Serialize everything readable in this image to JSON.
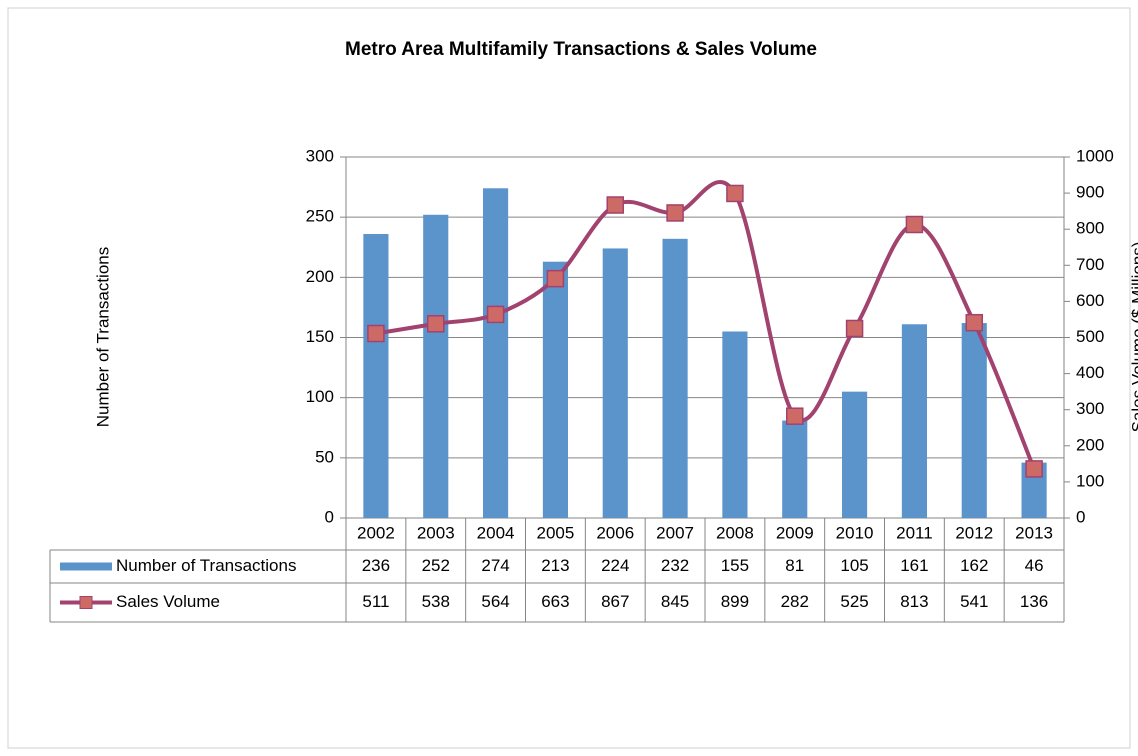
{
  "chart_data": {
    "type": "bar",
    "title": "Metro Area Multifamily Transactions & Sales Volume",
    "y_label": "Number of Transactions",
    "y2_label": "Sales Volume ($ Millions)",
    "categories": [
      "2002",
      "2003",
      "2004",
      "2005",
      "2006",
      "2007",
      "2008",
      "2009",
      "2010",
      "2011",
      "2012",
      "2013"
    ],
    "series": [
      {
        "name": "Number of Transactions",
        "type": "bar",
        "color": "#5b93cb",
        "values": [
          236,
          252,
          274,
          213,
          224,
          232,
          155,
          81,
          105,
          161,
          162,
          46
        ]
      },
      {
        "name": "Sales Volume",
        "type": "line",
        "axis": "y2",
        "color": "#a2426f",
        "marker_color": "#cd6a66",
        "values": [
          511,
          538,
          564,
          663,
          867,
          845,
          899,
          282,
          525,
          813,
          541,
          136
        ]
      }
    ],
    "ylim": [
      0,
      300
    ],
    "yticks": [
      0,
      50,
      100,
      150,
      200,
      250,
      300
    ],
    "y2lim": [
      0,
      1000
    ],
    "y2ticks": [
      0,
      100,
      200,
      300,
      400,
      500,
      600,
      700,
      800,
      900,
      1000
    ],
    "grid": true
  }
}
